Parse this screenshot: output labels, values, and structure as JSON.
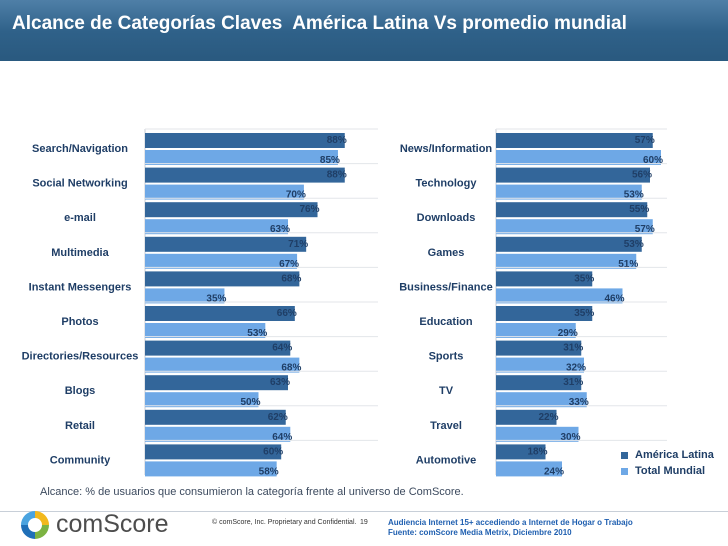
{
  "title": "Alcance de Categorías Claves  América Latina Vs promedio mundial",
  "chart_data": [
    {
      "type": "bar",
      "orientation": "horizontal",
      "categories": [
        "Search/Navigation",
        "Social Networking",
        "e-mail",
        "Multimedia",
        "Instant Messengers",
        "Photos",
        "Directories/Resources",
        "Blogs",
        "Retail",
        "Community"
      ],
      "series": [
        {
          "name": "América Latina",
          "values": [
            88,
            88,
            76,
            71,
            68,
            66,
            64,
            63,
            62,
            60
          ]
        },
        {
          "name": "Total Mundial",
          "values": [
            85,
            70,
            63,
            67,
            35,
            53,
            68,
            50,
            64,
            58
          ]
        }
      ],
      "unit": "%",
      "xlim": [
        0,
        100
      ]
    },
    {
      "type": "bar",
      "orientation": "horizontal",
      "categories": [
        "News/Information",
        "Technology",
        "Downloads",
        "Games",
        "Business/Finance",
        "Education",
        "Sports",
        "TV",
        "Travel",
        "Automotive"
      ],
      "series": [
        {
          "name": "América Latina",
          "values": [
            57,
            56,
            55,
            53,
            35,
            35,
            31,
            31,
            22,
            18
          ]
        },
        {
          "name": "Total Mundial",
          "values": [
            60,
            53,
            57,
            51,
            46,
            29,
            32,
            33,
            30,
            24
          ]
        }
      ],
      "unit": "%",
      "xlim": [
        0,
        60
      ]
    }
  ],
  "legend": {
    "items": [
      {
        "label": "América Latina",
        "color": "#33669a"
      },
      {
        "label": "Total Mundial",
        "color": "#6ea8e6"
      }
    ]
  },
  "footnote": "Alcance: % de usuarios que consumieron la categoría frente al universo de ComScore.",
  "footer": {
    "logo_text": "comScore",
    "copyright": "© comScore, Inc.  Proprietary and Confidential.",
    "page_number": "19",
    "source_line1": "Audiencia Internet 15+  accediendo a Internet de Hogar o Trabajo",
    "source_line2": "Fuente:  comScore Media Metrix, Diciembre 2010"
  }
}
